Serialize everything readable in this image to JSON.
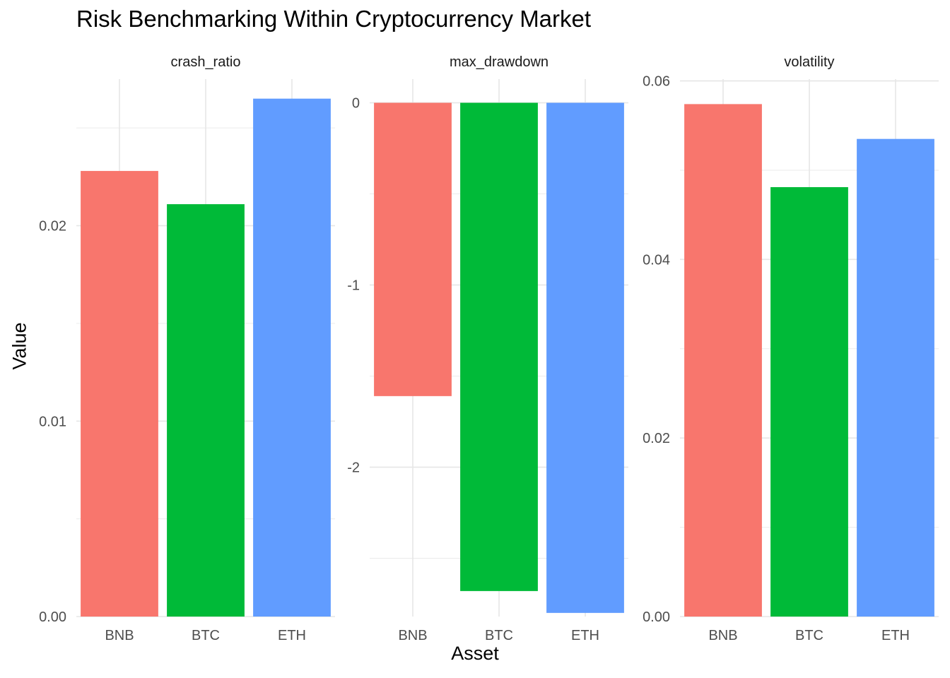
{
  "chart_data": {
    "type": "bar",
    "title": "Risk Benchmarking Within Cryptocurrency Market",
    "xlabel": "Asset",
    "ylabel": "Value",
    "grid": true,
    "colors": {
      "BNB": "#F8766D",
      "BTC": "#00BA38",
      "ETH": "#619CFF"
    },
    "panels": [
      {
        "name": "crash_ratio",
        "categories": [
          "BNB",
          "BTC",
          "ETH"
        ],
        "values": [
          0.0228,
          0.0211,
          0.0265
        ],
        "ylim": [
          0,
          0.0275
        ],
        "yticks": [
          0.0,
          0.01,
          0.02
        ],
        "ytick_labels": [
          "0.00",
          "0.01",
          "0.02"
        ],
        "minor_ticks": [
          0.005,
          0.015,
          0.025
        ]
      },
      {
        "name": "max_drawdown",
        "categories": [
          "BNB",
          "BTC",
          "ETH"
        ],
        "values": [
          -1.61,
          -2.68,
          -2.8
        ],
        "ylim": [
          -2.82,
          0.13
        ],
        "yticks": [
          0,
          -1,
          -2
        ],
        "ytick_labels": [
          "0",
          "-1",
          "-2"
        ],
        "minor_ticks": [
          -0.5,
          -1.5,
          -2.5
        ]
      },
      {
        "name": "volatility",
        "categories": [
          "BNB",
          "BTC",
          "ETH"
        ],
        "values": [
          0.0574,
          0.0481,
          0.0535
        ],
        "ylim": [
          0,
          0.0602
        ],
        "yticks": [
          0.0,
          0.02,
          0.04,
          0.06
        ],
        "ytick_labels": [
          "0.00",
          "0.02",
          "0.04",
          "0.06"
        ],
        "minor_ticks": [
          0.01,
          0.03,
          0.05
        ]
      }
    ]
  }
}
